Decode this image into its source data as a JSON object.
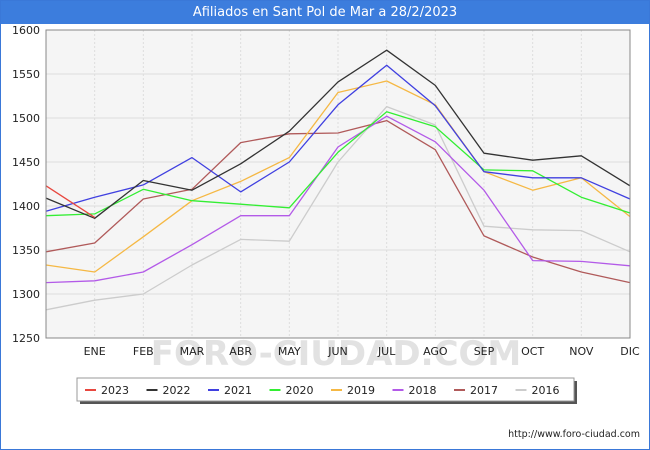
{
  "title": "Afiliados en Sant Pol de Mar a 28/2/2023",
  "source": "http://www.foro-ciudad.com",
  "watermark": "FORO-CIUDAD.COM",
  "colors": {
    "title_bg": "#3c7ddd",
    "plot_bg": "#f5f5f5",
    "grid": "#ffffff"
  },
  "chart_data": {
    "type": "line",
    "title": "Afiliados en Sant Pol de Mar a 28/2/2023",
    "xlabel": "",
    "ylabel": "",
    "x": [
      "",
      "ENE",
      "FEB",
      "MAR",
      "ABR",
      "MAY",
      "JUN",
      "JUL",
      "AGO",
      "SEP",
      "OCT",
      "NOV",
      "DIC"
    ],
    "ylim": [
      1250,
      1600
    ],
    "yticks": [
      1250,
      1300,
      1350,
      1400,
      1450,
      1500,
      1550,
      1600
    ],
    "grid": true,
    "legend_position": "bottom",
    "series": [
      {
        "name": "2023",
        "color": "#e8473f",
        "values": [
          1423,
          1387,
          null,
          null,
          null,
          null,
          null,
          null,
          null,
          null,
          null,
          null,
          null
        ]
      },
      {
        "name": "2022",
        "color": "#333333",
        "values": [
          1409,
          1386,
          1429,
          1418,
          1448,
          1485,
          1541,
          1577,
          1537,
          1460,
          1452,
          1457,
          1423
        ]
      },
      {
        "name": "2021",
        "color": "#4040e0",
        "values": [
          1394,
          1410,
          1424,
          1455,
          1416,
          1450,
          1515,
          1560,
          1514,
          1439,
          1432,
          1432,
          1408
        ]
      },
      {
        "name": "2020",
        "color": "#33ee33",
        "values": [
          1389,
          1391,
          1419,
          1406,
          1402,
          1398,
          1461,
          1507,
          1490,
          1441,
          1440,
          1410,
          1392
        ]
      },
      {
        "name": "2019",
        "color": "#f5b844",
        "values": [
          1333,
          1325,
          1365,
          1406,
          1428,
          1455,
          1529,
          1542,
          1515,
          1439,
          1418,
          1432,
          1388
        ]
      },
      {
        "name": "2018",
        "color": "#b35ae8",
        "values": [
          1313,
          1315,
          1325,
          1356,
          1389,
          1389,
          1467,
          1502,
          1473,
          1418,
          1338,
          1337,
          1332
        ]
      },
      {
        "name": "2017",
        "color": "#b05a5a",
        "values": [
          1348,
          1358,
          1408,
          1419,
          1472,
          1482,
          1483,
          1497,
          1464,
          1366,
          1342,
          1325,
          1313
        ]
      },
      {
        "name": "2016",
        "color": "#cccccc",
        "values": [
          1282,
          1293,
          1300,
          1333,
          1362,
          1360,
          1450,
          1513,
          1492,
          1377,
          1373,
          1372,
          1348
        ]
      }
    ]
  }
}
